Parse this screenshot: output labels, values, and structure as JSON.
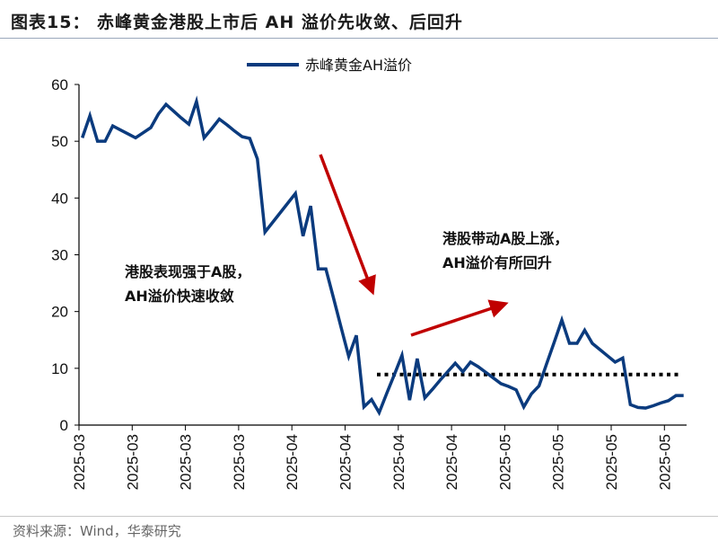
{
  "title": "图表15： 赤峰黄金港股上市后 AH 溢价先收敛、后回升",
  "source": "资料来源：Wind，华泰研究",
  "chart_data": {
    "type": "line",
    "title": "",
    "xlabel": "",
    "ylabel": "",
    "ylim": [
      0,
      60
    ],
    "yticks": [
      0,
      10,
      20,
      30,
      40,
      50,
      60
    ],
    "xtick_labels": [
      "2025-03",
      "2025-03",
      "2025-03",
      "2025-03",
      "2025-04",
      "2025-04",
      "2025-04",
      "2025-04",
      "2025-05",
      "2025-05",
      "2025-05",
      "2025-05"
    ],
    "legend_position": "top-center",
    "grid": false,
    "series": [
      {
        "name": "赤峰黄金AH溢价",
        "color": "#0b3b7e",
        "values": [
          50.6,
          54.5,
          50.0,
          50.0,
          52.7,
          52.0,
          51.3,
          50.6,
          51.5,
          52.4,
          54.8,
          56.5,
          55.3,
          54.1,
          53.0,
          57.0,
          50.6,
          52.2,
          53.9,
          52.9,
          51.8,
          50.8,
          50.5,
          46.9,
          34.0,
          35.7,
          37.4,
          39.1,
          40.8,
          33.3,
          38.6,
          27.5,
          27.5,
          22.4,
          17.2,
          12.1,
          15.8,
          3.2,
          4.5,
          2.2,
          5.6,
          8.9,
          12.3,
          4.4,
          11.7,
          4.8,
          6.3,
          7.9,
          9.4,
          10.9,
          9.4,
          11.1,
          10.3,
          9.3,
          8.3,
          7.3,
          6.8,
          6.2,
          3.2,
          5.5,
          6.9,
          10.8,
          14.6,
          18.5,
          14.4,
          14.4,
          16.7,
          14.4,
          13.3,
          12.2,
          11.1,
          11.8,
          3.6,
          3.1,
          3.0,
          3.4,
          3.9,
          4.3,
          5.2,
          5.2
        ]
      }
    ],
    "reference_line": {
      "value": 8.9,
      "style": "dotted",
      "color": "#000000"
    },
    "annotations": [
      {
        "lines": [
          "港股表现强于A股，",
          "AH溢价快速收敛"
        ],
        "arrow": "down",
        "arrow_color": "#c00000"
      },
      {
        "lines": [
          "港股带动A股上涨，",
          "AH溢价有所回升"
        ],
        "arrow": "up",
        "arrow_color": "#c00000"
      }
    ]
  }
}
